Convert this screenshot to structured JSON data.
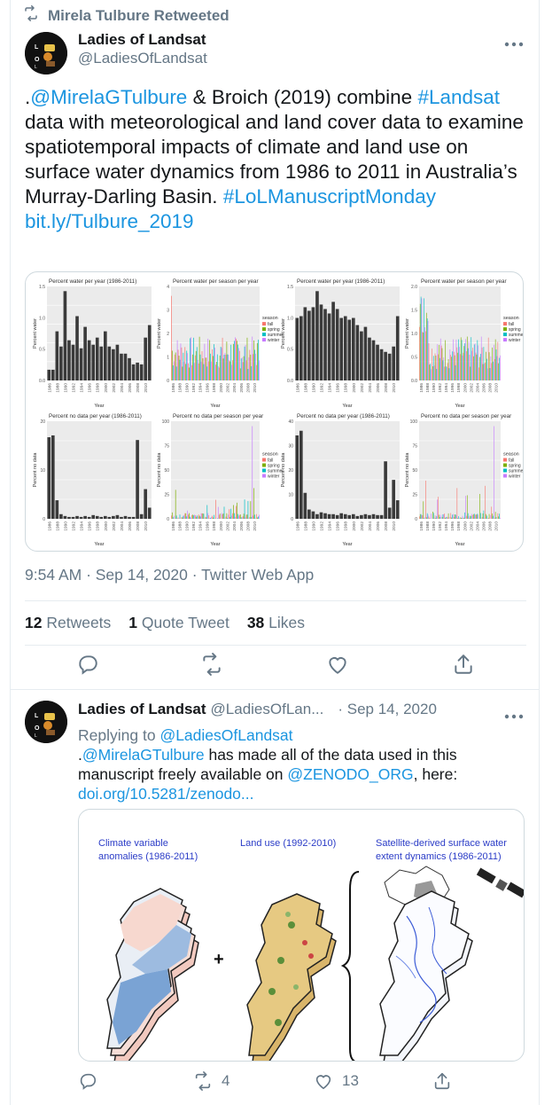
{
  "retweet_banner": {
    "text": "Mirela Tulbure Retweeted",
    "icon": "retweet-icon"
  },
  "tweet": {
    "author_name": "Ladies of Landsat",
    "author_handle": "@LadiesOfLandsat",
    "text_segments": [
      {
        "t": ".",
        "link": false
      },
      {
        "t": "@MirelaGTulbure",
        "link": true
      },
      {
        "t": " & Broich (2019) combine ",
        "link": false
      },
      {
        "t": "#Landsat",
        "link": true
      },
      {
        "t": " data with meteorological and land cover data to examine spatiotemporal impacts of climate and land use on surface water dynamics from 1986 to 2011 in Australia’s Murray-Darling Basin. ",
        "link": false
      },
      {
        "t": "#LoLManuscriptMonday",
        "link": true
      },
      {
        "t": " ",
        "link": false
      },
      {
        "t": "bit.ly/Tulbure_2019",
        "link": true
      }
    ],
    "timestamp": "9:54 AM · Sep 14, 2020 · Twitter Web App",
    "stats": {
      "retweets_count": "12",
      "retweets_label": "Retweets",
      "quotes_count": "1",
      "quotes_label": "Quote Tweet",
      "likes_count": "38",
      "likes_label": "Likes"
    },
    "figure": {
      "panels": [
        {
          "title": "Percent water per year (1986-2011)",
          "ylabel": "Percent water",
          "xlabel": "Year",
          "yticks": [
            "0.0",
            "0.5",
            "1.0",
            "1.5"
          ],
          "type": "bar",
          "legend": false
        },
        {
          "title": "Percent water per season per year",
          "ylabel": "Percent water",
          "xlabel": "Year",
          "yticks": [
            "0",
            "1",
            "2",
            "3",
            "4"
          ],
          "type": "season",
          "legend": true
        },
        {
          "title": "Percent water per year (1986-2011)",
          "ylabel": "Percent water",
          "xlabel": "Year",
          "yticks": [
            "0.0",
            "0.5",
            "1.0",
            "1.5"
          ],
          "type": "bar",
          "legend": false
        },
        {
          "title": "Percent water per season per year",
          "ylabel": "Percent water",
          "xlabel": "Year",
          "yticks": [
            "0.0",
            "0.5",
            "1.0",
            "1.5",
            "2.0"
          ],
          "type": "season",
          "legend": true
        },
        {
          "title": "Percent no data per year (1986-2011)",
          "ylabel": "Percent no data",
          "xlabel": "Year",
          "yticks": [
            "0",
            "10",
            "20"
          ],
          "type": "bar",
          "legend": false
        },
        {
          "title": "Percent no data per season per year",
          "ylabel": "Percent no data",
          "xlabel": "Year",
          "yticks": [
            "0",
            "25",
            "50",
            "75",
            "100"
          ],
          "type": "season",
          "legend": true
        },
        {
          "title": "Percent no data per year (1986-2011)",
          "ylabel": "Percent no data",
          "xlabel": "Year",
          "yticks": [
            "0",
            "10",
            "20",
            "30",
            "40"
          ],
          "type": "bar",
          "legend": false
        },
        {
          "title": "Percent no data per season per year",
          "ylabel": "Percent no data",
          "xlabel": "Year",
          "yticks": [
            "0",
            "25",
            "50",
            "75",
            "100"
          ],
          "type": "season",
          "legend": true
        }
      ],
      "legend_title": "season",
      "legend_items": [
        {
          "label": "fall",
          "color": "#f8766d"
        },
        {
          "label": "spring",
          "color": "#7cae00"
        },
        {
          "label": "summer",
          "color": "#00bfc4"
        },
        {
          "label": "winter",
          "color": "#c77cff"
        }
      ],
      "x_ticks": [
        "1986",
        "1988",
        "1990",
        "1992",
        "1994",
        "1996",
        "1998",
        "2000",
        "2002",
        "2004",
        "2006",
        "2008",
        "2010"
      ]
    }
  },
  "reply": {
    "author_name": "Ladies of Landsat",
    "author_handle": "@LadiesOfLan...",
    "date": "· Sep 14, 2020",
    "replying_prefix": "Replying to",
    "replying_to": "@LadiesOfLandsat",
    "body_segments": [
      {
        "t": ".",
        "link": false
      },
      {
        "t": "@MirelaGTulbure",
        "link": true
      },
      {
        "t": " has made all of the data used in this manuscript freely available on ",
        "link": false
      },
      {
        "t": "@ZENODO_ORG",
        "link": true
      },
      {
        "t": ", here: ",
        "link": false
      },
      {
        "t": "doi.org/10.5281/zenodo...",
        "link": true
      }
    ],
    "figure": {
      "label_climate": [
        "Climate variable",
        "anomalies (1986-2011)"
      ],
      "label_landuse": "Land use (1992-2010)",
      "label_surface": [
        "Satellite-derived surface water",
        "extent dynamics (1986-2011)"
      ],
      "plus": "+"
    },
    "stats": {
      "retweets": "4",
      "likes": "13"
    }
  },
  "colors": {
    "link": "#1b95e0",
    "muted": "#657786",
    "text": "#14171a",
    "border": "#e6ecf0"
  }
}
